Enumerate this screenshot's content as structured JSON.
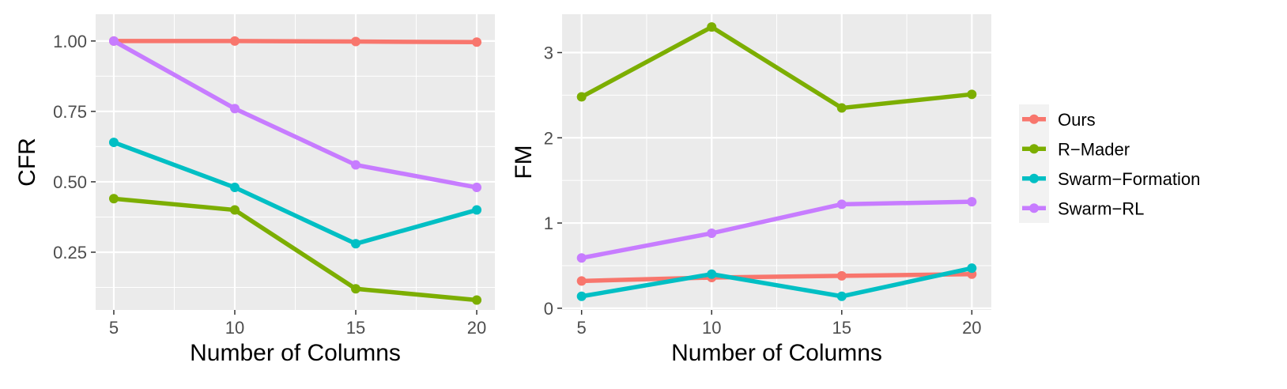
{
  "chart_data": [
    {
      "type": "line",
      "title": "",
      "xlabel": "Number of Columns",
      "ylabel": "CFR",
      "x": [
        5,
        10,
        15,
        20
      ],
      "xticks": [
        "5",
        "10",
        "15",
        "20"
      ],
      "xlim": [
        4.25,
        20.75
      ],
      "xminor": [
        7.5,
        12.5,
        17.5
      ],
      "ylim": [
        0.045,
        1.095
      ],
      "yticks": [
        0.25,
        0.5,
        0.75,
        1.0
      ],
      "ytick_labels": [
        "0.25",
        "0.50",
        "0.75",
        "1.00"
      ],
      "yminor": [
        0.125,
        0.375,
        0.625,
        0.875
      ],
      "grid": true,
      "series": [
        {
          "name": "Ours",
          "color": "#F8766D",
          "values": [
            1.0,
            1.0,
            0.998,
            0.996
          ]
        },
        {
          "name": "R−Mader",
          "color": "#7CAE00",
          "values": [
            0.44,
            0.4,
            0.12,
            0.08
          ]
        },
        {
          "name": "Swarm−Formation",
          "color": "#00BFC4",
          "values": [
            0.64,
            0.48,
            0.28,
            0.4
          ]
        },
        {
          "name": "Swarm−RL",
          "color": "#C77CFF",
          "values": [
            1.0,
            0.76,
            0.56,
            0.48
          ]
        }
      ]
    },
    {
      "type": "line",
      "title": "",
      "xlabel": "Number of Columns",
      "ylabel": "FM",
      "x": [
        5,
        10,
        15,
        20
      ],
      "xticks": [
        "5",
        "10",
        "15",
        "20"
      ],
      "xlim": [
        4.25,
        20.75
      ],
      "xminor": [
        7.5,
        12.5,
        17.5
      ],
      "ylim": [
        -0.02,
        3.45
      ],
      "yticks": [
        0,
        1,
        2,
        3
      ],
      "ytick_labels": [
        "0",
        "1",
        "2",
        "3"
      ],
      "yminor": [
        0.5,
        1.5,
        2.5
      ],
      "grid": true,
      "series": [
        {
          "name": "Ours",
          "color": "#F8766D",
          "values": [
            0.32,
            0.36,
            0.38,
            0.4
          ]
        },
        {
          "name": "R−Mader",
          "color": "#7CAE00",
          "values": [
            2.48,
            3.3,
            2.35,
            2.51
          ]
        },
        {
          "name": "Swarm−Formation",
          "color": "#00BFC4",
          "values": [
            0.14,
            0.4,
            0.14,
            0.47
          ]
        },
        {
          "name": "Swarm−RL",
          "color": "#C77CFF",
          "values": [
            0.59,
            0.88,
            1.22,
            1.25
          ]
        }
      ]
    }
  ],
  "legend": {
    "placement": "right",
    "entries": [
      {
        "label": "Ours",
        "color": "#F8766D"
      },
      {
        "label": "R−Mader",
        "color": "#7CAE00"
      },
      {
        "label": "Swarm−Formation",
        "color": "#00BFC4"
      },
      {
        "label": "Swarm−RL",
        "color": "#C77CFF"
      }
    ]
  }
}
